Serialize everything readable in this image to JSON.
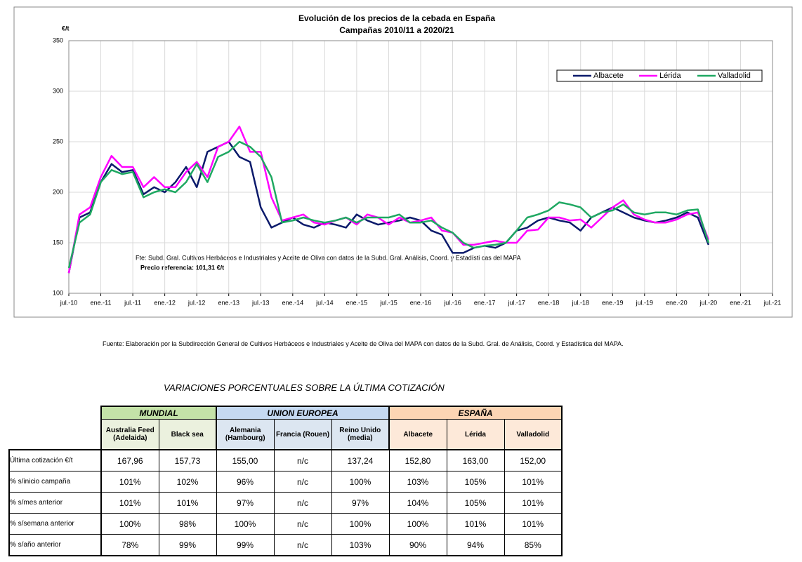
{
  "chart_data": {
    "type": "line",
    "title": "Evolución de los precios de la cebada en España",
    "subtitle": "Campañas 2010/11 a 2020/21",
    "y_label": "€/t",
    "note": "Fte: Subd. Gral. Cultivos Herbáceos e Industriales y Aceite de Oliva con datos de la Subd. Gral. Análisis, Coord. y Estadísti cas del MAPA",
    "reference": "Precio referencia: 101,31 €/t",
    "x": [
      2010.5,
      2010.667,
      2010.833,
      2011,
      2011.167,
      2011.333,
      2011.5,
      2011.667,
      2011.833,
      2012,
      2012.167,
      2012.333,
      2012.5,
      2012.667,
      2012.833,
      2013,
      2013.167,
      2013.333,
      2013.5,
      2013.667,
      2013.833,
      2014,
      2014.167,
      2014.333,
      2014.5,
      2014.667,
      2014.833,
      2015,
      2015.167,
      2015.333,
      2015.5,
      2015.667,
      2015.833,
      2016,
      2016.167,
      2016.333,
      2016.5,
      2016.667,
      2016.833,
      2017,
      2017.167,
      2017.333,
      2017.5,
      2017.667,
      2017.833,
      2018,
      2018.167,
      2018.333,
      2018.5,
      2018.667,
      2018.833,
      2019,
      2019.167,
      2019.333,
      2019.5,
      2019.667,
      2019.833,
      2020,
      2020.167,
      2020.333,
      2020.5
    ],
    "series": [
      {
        "name": "Albacete",
        "color": "#0b1a6b",
        "values": [
          120,
          175,
          180,
          210,
          228,
          220,
          222,
          198,
          205,
          200,
          210,
          225,
          205,
          240,
          245,
          250,
          235,
          230,
          185,
          165,
          170,
          175,
          168,
          165,
          170,
          168,
          165,
          178,
          172,
          168,
          170,
          172,
          175,
          172,
          162,
          158,
          140,
          140,
          145,
          147,
          145,
          150,
          162,
          165,
          172,
          175,
          172,
          170,
          162,
          175,
          180,
          185,
          180,
          175,
          172,
          170,
          172,
          175,
          180,
          175,
          148
        ]
      },
      {
        "name": "Lérida",
        "color": "#ff00ff",
        "values": [
          120,
          178,
          185,
          215,
          236,
          225,
          225,
          205,
          215,
          205,
          205,
          220,
          230,
          215,
          245,
          250,
          265,
          240,
          240,
          195,
          172,
          175,
          178,
          170,
          168,
          172,
          175,
          168,
          178,
          175,
          168,
          175,
          170,
          172,
          175,
          162,
          160,
          148,
          148,
          150,
          152,
          150,
          150,
          162,
          163,
          175,
          175,
          172,
          173,
          165,
          175,
          185,
          192,
          178,
          173,
          170,
          170,
          173,
          178,
          180,
          153
        ]
      },
      {
        "name": "Valladolid",
        "color": "#1fa862",
        "values": [
          125,
          170,
          178,
          210,
          222,
          218,
          220,
          195,
          200,
          203,
          200,
          210,
          228,
          210,
          235,
          240,
          250,
          245,
          235,
          215,
          170,
          172,
          175,
          172,
          170,
          172,
          175,
          170,
          175,
          175,
          175,
          178,
          170,
          170,
          172,
          165,
          160,
          150,
          145,
          147,
          148,
          150,
          162,
          175,
          178,
          182,
          190,
          188,
          185,
          175,
          180,
          182,
          188,
          180,
          178,
          180,
          180,
          178,
          182,
          183,
          150
        ]
      }
    ],
    "xlim": [
      2010.5,
      2021.5
    ],
    "xticks": [
      {
        "value": 2010.5,
        "label": "jul.-10"
      },
      {
        "value": 2011,
        "label": "ene.-11"
      },
      {
        "value": 2011.5,
        "label": "jul.-11"
      },
      {
        "value": 2012,
        "label": "ene.-12"
      },
      {
        "value": 2012.5,
        "label": "jul.-12"
      },
      {
        "value": 2013,
        "label": "ene.-13"
      },
      {
        "value": 2013.5,
        "label": "jul.-13"
      },
      {
        "value": 2014,
        "label": "ene.-14"
      },
      {
        "value": 2014.5,
        "label": "jul.-14"
      },
      {
        "value": 2015,
        "label": "ene.-15"
      },
      {
        "value": 2015.5,
        "label": "jul.-15"
      },
      {
        "value": 2016,
        "label": "ene.-16"
      },
      {
        "value": 2016.5,
        "label": "jul.-16"
      },
      {
        "value": 2017,
        "label": "ene.-17"
      },
      {
        "value": 2017.5,
        "label": "jul.-17"
      },
      {
        "value": 2018,
        "label": "ene.-18"
      },
      {
        "value": 2018.5,
        "label": "jul.-18"
      },
      {
        "value": 2019,
        "label": "ene.-19"
      },
      {
        "value": 2019.5,
        "label": "jul.-19"
      },
      {
        "value": 2020,
        "label": "ene.-20"
      },
      {
        "value": 2020.5,
        "label": "jul.-20"
      },
      {
        "value": 2021,
        "label": "ene.-21"
      },
      {
        "value": 2021.5,
        "label": "jul.-21"
      }
    ],
    "ylim": [
      100,
      350
    ],
    "yticks": [
      100,
      150,
      200,
      250,
      300,
      350
    ],
    "grid": true,
    "legend": "upper right"
  },
  "source": "Fuente: Elaboración por la Subdirección General de Cultivos Herbáceos e Industriales y Aceite de Oliva del MAPA con datos de la Subd. Gral. de Análisis, Coord. y Estadística del MAPA.",
  "table": {
    "title": "VARIACIONES PORCENTUALES SOBRE LA ÚLTIMA COTIZACIÓN",
    "groups": [
      {
        "label": "MUNDIAL",
        "columns": [
          "Australia Feed (Adelaida)",
          "Black sea"
        ]
      },
      {
        "label": "UNION EUROPEA",
        "columns": [
          "Alemania (Hambourg)",
          "Francia (Rouen)",
          "Reino Unido (media)"
        ]
      },
      {
        "label": "ESPAÑA",
        "columns": [
          "Albacete",
          "Lérida",
          "Valladolid"
        ]
      }
    ],
    "rows": [
      {
        "label": "Última cotización €/t",
        "values": [
          "167,96",
          "157,73",
          "155,00",
          "n/c",
          "137,24",
          "152,80",
          "163,00",
          "152,00"
        ]
      },
      {
        "label": "% s/inicio campaña",
        "values": [
          "101%",
          "102%",
          "96%",
          "n/c",
          "100%",
          "103%",
          "105%",
          "101%"
        ]
      },
      {
        "label": "% s/mes anterior",
        "values": [
          "101%",
          "101%",
          "97%",
          "n/c",
          "97%",
          "104%",
          "105%",
          "101%"
        ]
      },
      {
        "label": "% s/semana anterior",
        "values": [
          "100%",
          "98%",
          "100%",
          "n/c",
          "100%",
          "100%",
          "101%",
          "101%"
        ]
      },
      {
        "label": "% s/año anterior",
        "values": [
          "78%",
          "99%",
          "99%",
          "n/c",
          "103%",
          "90%",
          "94%",
          "85%"
        ]
      }
    ]
  }
}
